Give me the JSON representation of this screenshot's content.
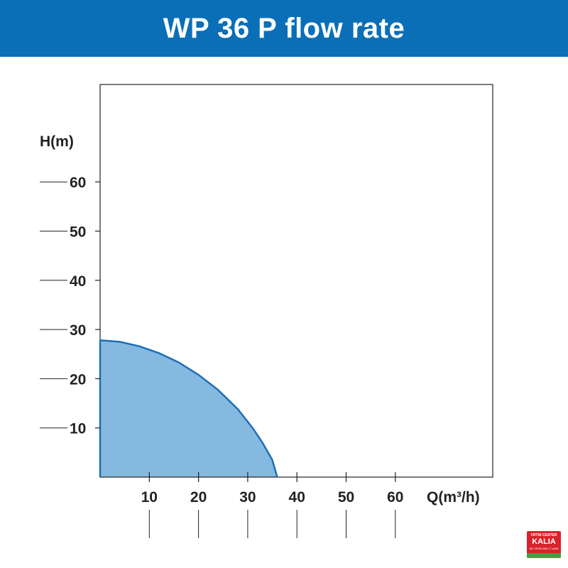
{
  "header": {
    "title": "WP 36 P flow rate",
    "background": "#0a6fb7"
  },
  "chart_data": {
    "type": "area",
    "title": "WP 36 P flow rate",
    "xlabel": "Q(m³/h)",
    "ylabel": "H(m)",
    "xlim": [
      0,
      80
    ],
    "ylim": [
      0,
      80
    ],
    "xticks": [
      10,
      20,
      30,
      40,
      50,
      60
    ],
    "yticks": [
      10,
      20,
      30,
      40,
      50,
      60
    ],
    "grid": false,
    "series": [
      {
        "color": "#1f6fb2",
        "fill": "#85b9e0",
        "x": [
          0,
          4,
          8,
          12,
          16,
          20,
          24,
          28,
          31,
          33,
          35,
          36
        ],
        "y": [
          27.8,
          27.5,
          26.6,
          25.2,
          23.3,
          20.8,
          17.7,
          13.8,
          10.0,
          7.0,
          3.5,
          0
        ]
      }
    ]
  },
  "logo": {
    "line1": "VRTNI CENTER",
    "line2": "KALIA",
    "line3": "SE VESELIMO Z VAMI"
  }
}
